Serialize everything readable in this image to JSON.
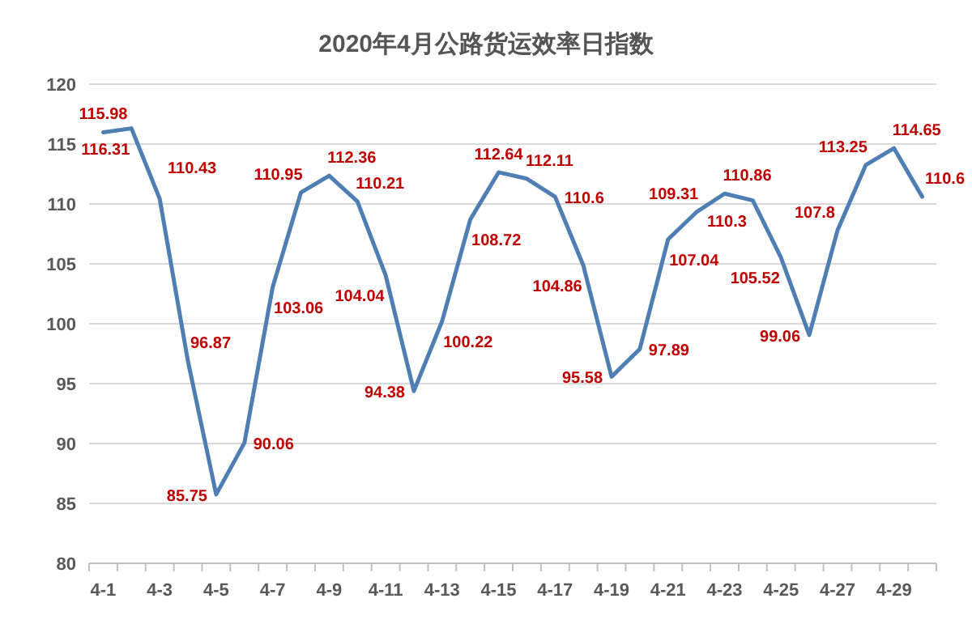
{
  "chart_data": {
    "type": "line",
    "title": "2020年4月公路货运效率日指数",
    "categories": [
      "4-1",
      null,
      "4-3",
      null,
      "4-5",
      null,
      "4-7",
      null,
      "4-9",
      null,
      "4-11",
      null,
      "4-13",
      null,
      "4-15",
      null,
      "4-17",
      null,
      "4-19",
      null,
      "4-21",
      null,
      "4-23",
      null,
      "4-25",
      null,
      "4-27",
      null,
      "4-29",
      null
    ],
    "series": [
      {
        "color": "#4f7eb3",
        "values": [
          115.98,
          116.31,
          110.43,
          96.87,
          85.75,
          90.06,
          103.06,
          110.95,
          112.36,
          110.21,
          104.04,
          94.38,
          100.22,
          108.72,
          112.64,
          112.11,
          110.6,
          104.86,
          95.58,
          97.89,
          107.04,
          109.31,
          110.86,
          110.3,
          105.52,
          99.06,
          107.8,
          113.25,
          114.65,
          110.6
        ]
      }
    ],
    "ylim": [
      80,
      120
    ],
    "yticks": [
      80,
      85,
      90,
      95,
      100,
      105,
      110,
      115,
      120
    ],
    "grid": "y",
    "data_labels": true,
    "marker": "none",
    "line_style": "solid"
  }
}
